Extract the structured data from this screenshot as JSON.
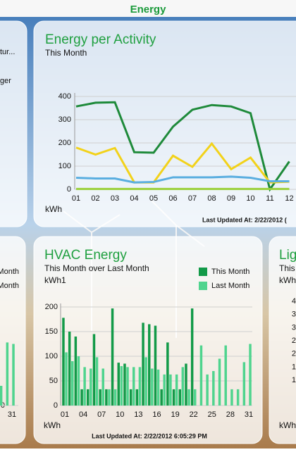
{
  "header": {
    "title": "Energy"
  },
  "left_top_card": {
    "lines": [
      "tur...",
      "ger"
    ]
  },
  "right_card": {
    "title": "Lig",
    "subtitle": "This",
    "unit": "kWh",
    "tick_labels": [
      "4",
      "3",
      "3",
      "2",
      "2",
      "1",
      "1"
    ],
    "y_label": "kWh"
  },
  "chart_data": [
    {
      "type": "line",
      "title": "Energy per Activity",
      "subtitle": "This Month",
      "y_label": "kWh",
      "footer": "Last Updated At: 2/22/2012 (",
      "categories": [
        "01",
        "02",
        "03",
        "04",
        "05",
        "06",
        "07",
        "08",
        "09",
        "10",
        "11",
        "12"
      ],
      "series": [
        {
          "color": "#1e8a3a",
          "values": [
            357,
            373,
            375,
            160,
            158,
            270,
            343,
            363,
            357,
            328,
            0,
            120
          ]
        },
        {
          "color": "#f2d21a",
          "values": [
            180,
            150,
            178,
            30,
            30,
            145,
            97,
            197,
            87,
            137,
            30,
            33
          ]
        },
        {
          "color": "#5aaee0",
          "values": [
            50,
            47,
            47,
            30,
            32,
            52,
            52,
            52,
            55,
            50,
            35,
            35
          ]
        },
        {
          "color": "#9ad03a",
          "values": [
            2,
            2,
            2,
            2,
            2,
            2,
            2,
            2,
            2,
            2,
            2,
            2
          ]
        }
      ],
      "ylim": [
        0,
        400
      ],
      "yticks": [
        0,
        100,
        200,
        300,
        400
      ],
      "grid": true
    },
    {
      "type": "bar",
      "title": "HVAC Energy",
      "subtitle": "This Month over Last Month",
      "unit": "kWh1",
      "y_label": "kWh",
      "footer": "Last Updated At: 2/22/2012 6:05:29 PM",
      "legend": "top-right",
      "categories": [
        "01",
        null,
        null,
        "04",
        null,
        null,
        "07",
        null,
        null,
        "10",
        null,
        null,
        "13",
        null,
        null,
        "16",
        null,
        null,
        "19",
        null,
        null,
        "22",
        null,
        null,
        "25",
        null,
        null,
        "28",
        null,
        null,
        "31"
      ],
      "series": [
        {
          "name": "This Month",
          "color": "#129a48",
          "values": [
            178,
            150,
            140,
            33,
            33,
            145,
            33,
            33,
            197,
            87,
            85,
            33,
            33,
            168,
            165,
            162,
            33,
            128,
            33,
            33,
            85,
            197,
            null,
            null,
            null,
            null,
            null,
            null,
            null,
            null,
            null
          ]
        },
        {
          "name": "Last Month",
          "color": "#4fd48e",
          "values": [
            108,
            90,
            100,
            78,
            75,
            98,
            75,
            33,
            33,
            80,
            78,
            78,
            78,
            98,
            75,
            73,
            63,
            63,
            63,
            78,
            33,
            33,
            122,
            63,
            70,
            95,
            122,
            33,
            33,
            88,
            125
          ]
        }
      ],
      "ylim": [
        0,
        200
      ],
      "yticks": [
        0,
        50,
        100,
        150,
        200
      ],
      "grid": true
    },
    {
      "type": "bar",
      "legend": "top-right",
      "categories": [
        null,
        null,
        "31"
      ],
      "series": [
        {
          "name": "Month",
          "color": "#129a48",
          "values": [
            null,
            null,
            null
          ]
        },
        {
          "name": "Month",
          "color": "#4fd48e",
          "values": [
            40,
            128,
            125
          ]
        }
      ],
      "ylim": [
        0,
        200
      ],
      "yticks": [
        0
      ],
      "grid": true
    }
  ]
}
